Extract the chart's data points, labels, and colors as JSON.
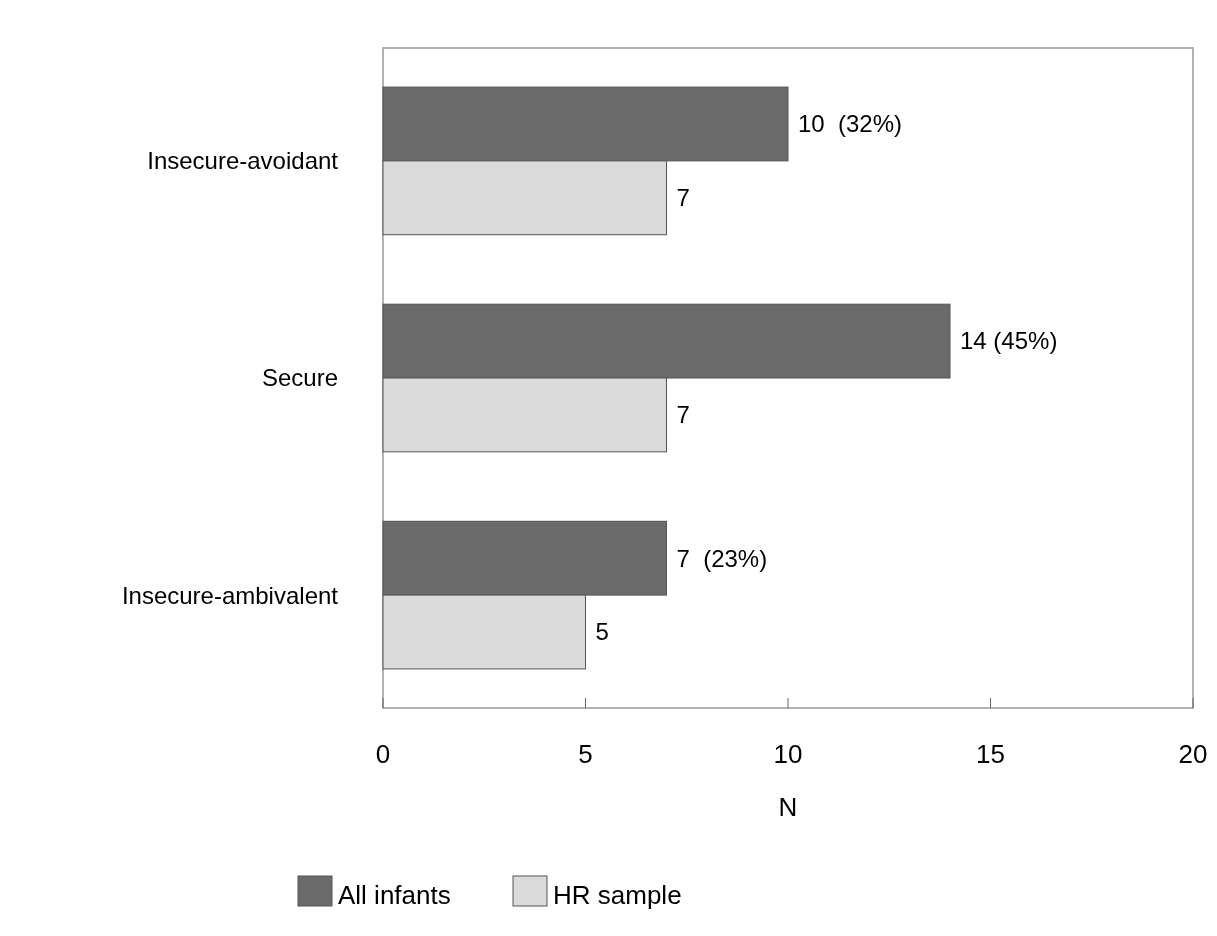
{
  "chart_data": {
    "type": "bar",
    "orientation": "horizontal",
    "categories": [
      "Insecure-avoidant",
      "Secure",
      "Insecure-ambivalent"
    ],
    "series": [
      {
        "name": "All infants",
        "color": "#6b6b6b",
        "values": [
          10,
          14,
          7
        ],
        "value_labels": [
          "10  (32%)",
          "14 (45%)",
          "7  (23%)"
        ]
      },
      {
        "name": "HR sample",
        "color": "#dadada",
        "values": [
          7,
          7,
          5
        ],
        "value_labels": [
          "7",
          "7",
          "5"
        ]
      }
    ],
    "xlim": [
      0,
      20
    ],
    "xticks": [
      0,
      5,
      10,
      15,
      20
    ],
    "xlabel": "N",
    "legend": "bottom",
    "grid": false
  }
}
